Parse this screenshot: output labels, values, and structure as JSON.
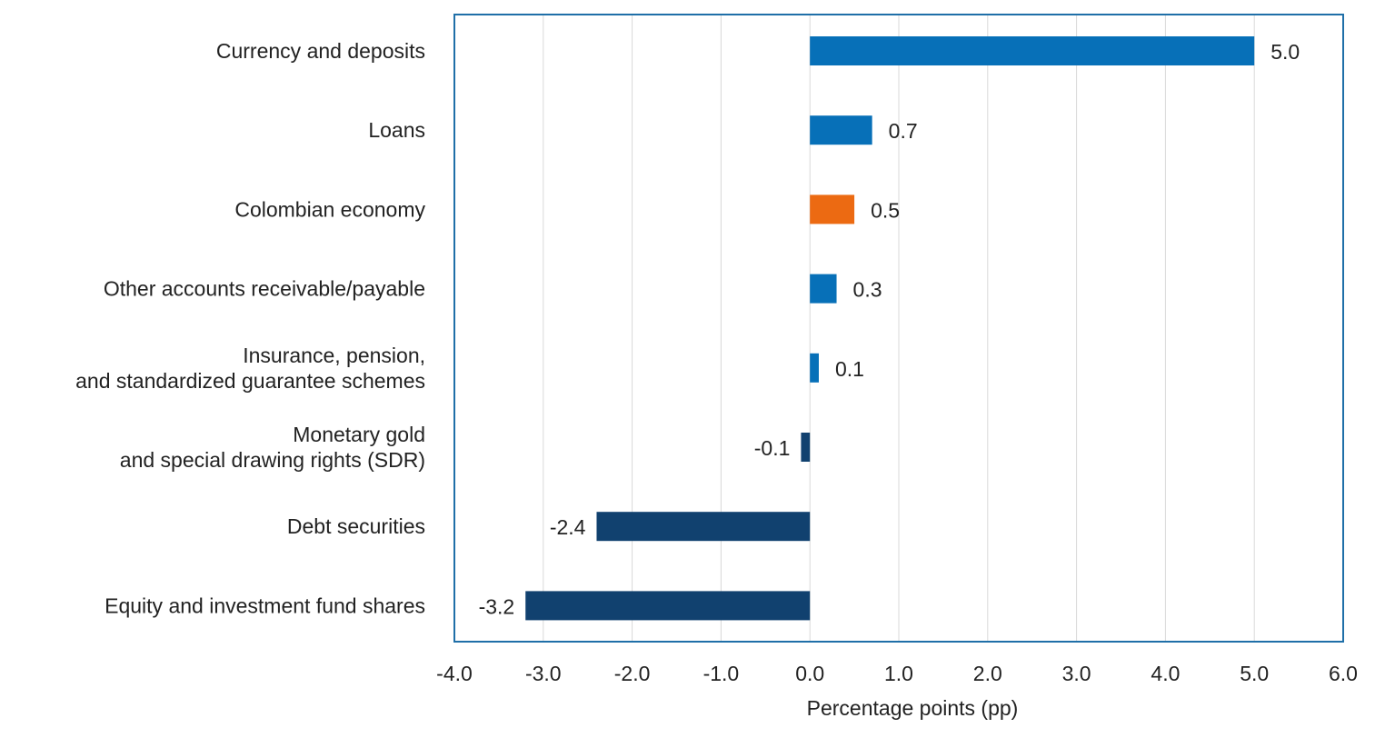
{
  "chart_data": {
    "type": "bar",
    "orientation": "horizontal",
    "categories": [
      [
        "Currency and deposits"
      ],
      [
        "Loans"
      ],
      [
        "Colombian economy"
      ],
      [
        "Other accounts receivable/payable"
      ],
      [
        "Insurance, pension,",
        "and standardized guarantee schemes"
      ],
      [
        "Monetary gold",
        "and special drawing rights (SDR)"
      ],
      [
        "Debt securities"
      ],
      [
        "Equity and investment fund shares"
      ]
    ],
    "values": [
      5.0,
      0.7,
      0.5,
      0.3,
      0.1,
      -0.1,
      -2.4,
      -3.2
    ],
    "value_labels": [
      "5.0",
      "0.7",
      "0.5",
      "0.3",
      "0.1",
      "-0.1",
      "-2.4",
      "-3.2"
    ],
    "bar_colors": [
      "#0770b8",
      "#0770b8",
      "#ec6a12",
      "#0770b8",
      "#0770b8",
      "#11416f",
      "#11416f",
      "#11416f"
    ],
    "xlabel": "Percentage points (pp)",
    "xlim": [
      -4.0,
      6.0
    ],
    "x_ticks": [
      -4.0,
      -3.0,
      -2.0,
      -1.0,
      0.0,
      1.0,
      2.0,
      3.0,
      4.0,
      5.0,
      6.0
    ],
    "x_tick_labels": [
      "-4.0",
      "-3.0",
      "-2.0",
      "-1.0",
      "0.0",
      "1.0",
      "2.0",
      "3.0",
      "4.0",
      "5.0",
      "6.0"
    ],
    "grid": "vertical",
    "frame_color": "#1f6fa8",
    "grid_color": "#d9d9d9"
  }
}
